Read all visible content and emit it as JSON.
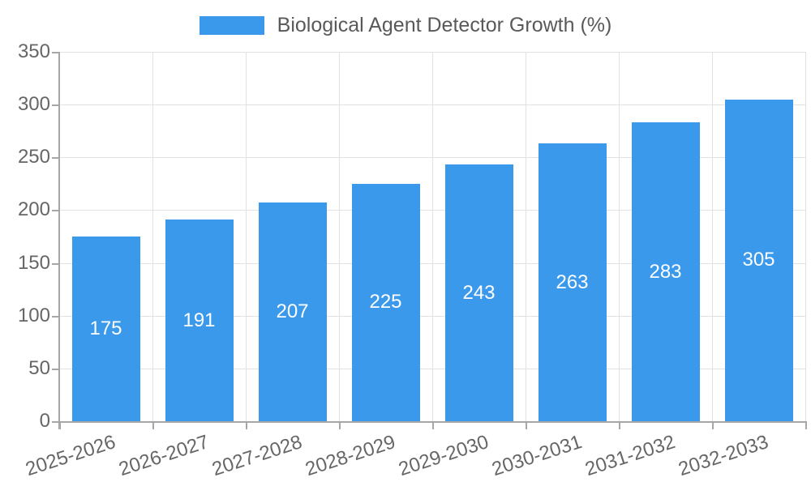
{
  "chart_data": {
    "type": "bar",
    "title": "Biological Agent Detector Growth (%)",
    "categories": [
      "2025-2026",
      "2026-2027",
      "2027-2028",
      "2028-2029",
      "2029-2030",
      "2030-2031",
      "2031-2032",
      "2032-2033"
    ],
    "values": [
      175,
      191,
      207,
      225,
      243,
      263,
      283,
      305
    ],
    "xlabel": "",
    "ylabel": "",
    "ylim": [
      0,
      350
    ],
    "yticks": [
      0,
      50,
      100,
      150,
      200,
      250,
      300,
      350
    ],
    "grid": true,
    "legend_position": "top-center",
    "bar_color": "#3b99ec",
    "value_label_color": "#ffffff",
    "grid_color": "#e2e2e2",
    "axis_color": "#a6a6a6",
    "tick_label_color": "#666666",
    "title_color": "#595959"
  }
}
